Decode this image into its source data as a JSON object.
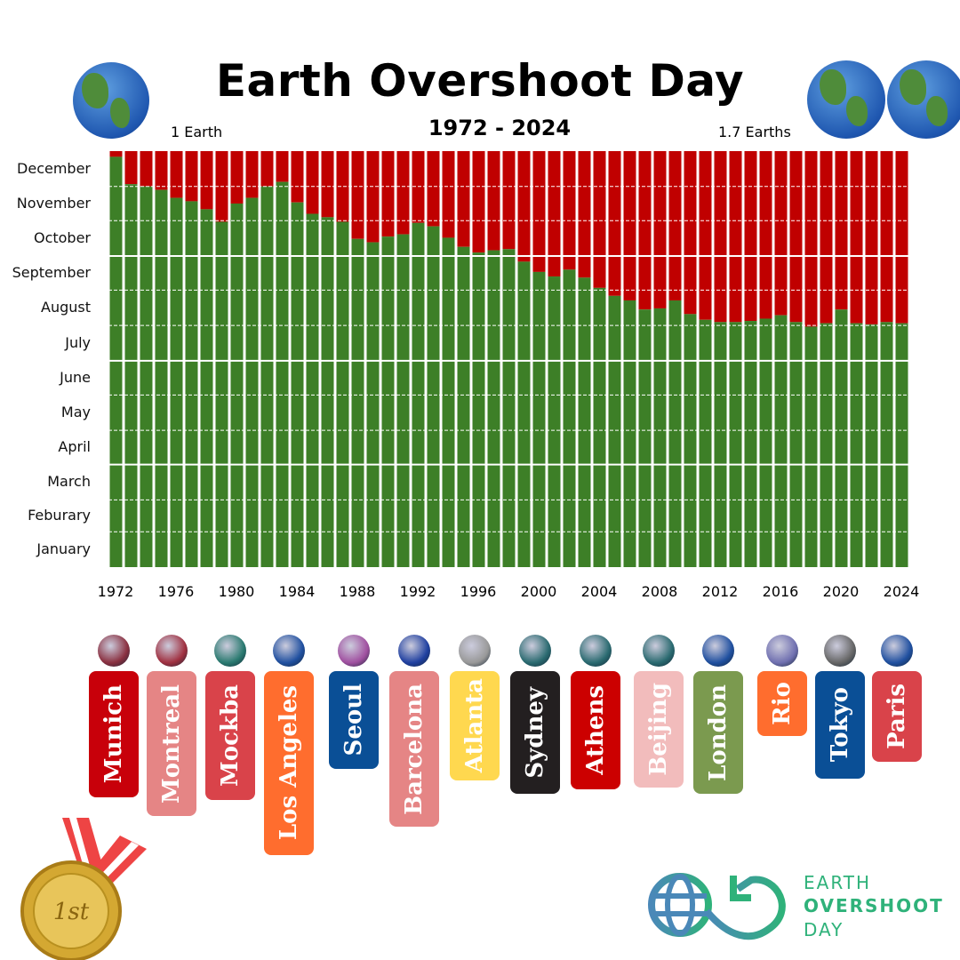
{
  "header": {
    "title": "Earth Overshoot Day",
    "subtitle": "1972 - 2024",
    "left_note": "1 Earth",
    "right_note": "1.7 Earths"
  },
  "chart_data": {
    "type": "bar",
    "stacked": true,
    "title": "Earth Overshoot Day",
    "subtitle": "1972 - 2024",
    "ylabel": "",
    "xlabel": "",
    "y_unit": "day of year",
    "ylim": [
      0,
      365
    ],
    "y_tick_labels": [
      "January",
      "Feburary",
      "March",
      "April",
      "May",
      "June",
      "July",
      "August",
      "September",
      "October",
      "November",
      "December"
    ],
    "x_tick_labels": [
      "1972",
      "1976",
      "1980",
      "1984",
      "1988",
      "1992",
      "1996",
      "2000",
      "2004",
      "2008",
      "2012",
      "2016",
      "2020",
      "2024"
    ],
    "grid": true,
    "colors": {
      "within_budget": "#3d7f27",
      "overshoot": "#c00000"
    },
    "categories": [
      1972,
      1973,
      1974,
      1975,
      1976,
      1977,
      1978,
      1979,
      1980,
      1981,
      1982,
      1983,
      1984,
      1985,
      1986,
      1987,
      1988,
      1989,
      1990,
      1991,
      1992,
      1993,
      1994,
      1995,
      1996,
      1997,
      1998,
      1999,
      2000,
      2001,
      2002,
      2003,
      2004,
      2005,
      2006,
      2007,
      2008,
      2009,
      2010,
      2011,
      2012,
      2013,
      2014,
      2015,
      2016,
      2017,
      2018,
      2019,
      2020,
      2021,
      2022,
      2023,
      2024
    ],
    "values": [
      360,
      336,
      334,
      331,
      324,
      321,
      314,
      303,
      319,
      324,
      334,
      338,
      320,
      310,
      307,
      303,
      288,
      285,
      290,
      292,
      302,
      299,
      289,
      281,
      276,
      278,
      279,
      268,
      259,
      255,
      261,
      254,
      245,
      238,
      234,
      226,
      227,
      234,
      222,
      217,
      215,
      215,
      216,
      218,
      221,
      215,
      211,
      214,
      226,
      214,
      213,
      215,
      214
    ]
  },
  "cities": [
    {
      "name": "Munich",
      "color": "#c8000a"
    },
    {
      "name": "Montreal",
      "color": "#e58585"
    },
    {
      "name": "Mockba",
      "color": "#d9434a"
    },
    {
      "name": "Los Angeles",
      "color": "#ff6d2e"
    },
    {
      "name": "Seoul",
      "color": "#0a4f96"
    },
    {
      "name": "Barcelona",
      "color": "#e58585"
    },
    {
      "name": "Atlanta",
      "color": "#ffd84f"
    },
    {
      "name": "Sydney",
      "color": "#231f20"
    },
    {
      "name": "Athens",
      "color": "#cc0000"
    },
    {
      "name": "Beijing",
      "color": "#f2bcbc"
    },
    {
      "name": "London",
      "color": "#7b9a4f"
    },
    {
      "name": "Rio",
      "color": "#ff6d2e"
    },
    {
      "name": "Tokyo",
      "color": "#0a4f96"
    },
    {
      "name": "Paris",
      "color": "#d9434a"
    }
  ],
  "medal": {
    "text": "1st"
  },
  "logo": {
    "line1": "EARTH",
    "line2": "OVERSHOOT",
    "line3": "DAY",
    "color": "#2fb27a"
  }
}
